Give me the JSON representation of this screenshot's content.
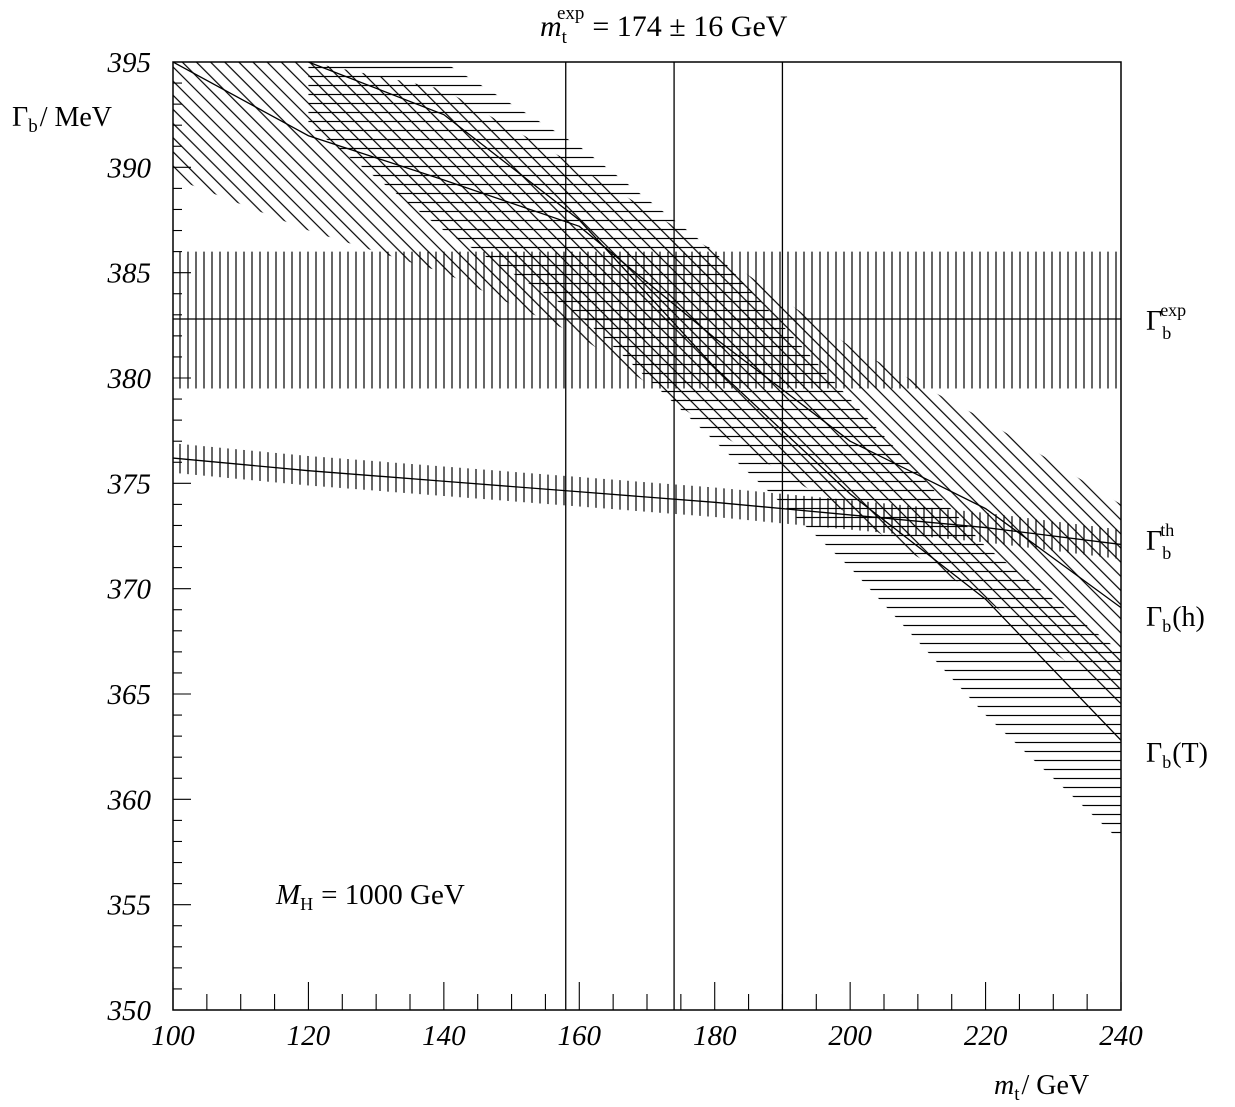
{
  "chart_data": {
    "type": "line",
    "title": {
      "symbol": "m",
      "sub": "t",
      "sup": "exp",
      "value": "= 174 ± 16 GeV"
    },
    "xlabel": {
      "symbol": "m",
      "sub": "t",
      "unit": "/ GeV"
    },
    "ylabel": {
      "symbol": "Γ",
      "sub": "b",
      "unit": "/ MeV"
    },
    "xlim": [
      100,
      240
    ],
    "ylim": [
      350,
      395
    ],
    "x_ticks": [
      "100",
      "120",
      "140",
      "160",
      "180",
      "200",
      "220",
      "240"
    ],
    "y_ticks": [
      "350",
      "355",
      "360",
      "365",
      "370",
      "375",
      "380",
      "385",
      "390",
      "395"
    ],
    "annotation": {
      "symbol": "M",
      "sub": "H",
      "value": "= 1000 GeV"
    },
    "mt_exp": {
      "central": 174,
      "low": 158,
      "high": 190
    },
    "series": [
      {
        "name": "Γ_b^exp",
        "label": {
          "base": "Γ",
          "sub": "b",
          "sup": "exp"
        },
        "x": [
          100,
          240
        ],
        "y": [
          382.8,
          382.8
        ],
        "band_lower": [
          379.5,
          379.5
        ],
        "band_upper": [
          386.0,
          386.0
        ],
        "band_hatch": "vertical"
      },
      {
        "name": "Γ_b^th",
        "label": {
          "base": "Γ",
          "sub": "b",
          "sup": "th"
        },
        "x": [
          100,
          120,
          140,
          160,
          180,
          200,
          220,
          240
        ],
        "y": [
          376.2,
          375.6,
          375.1,
          374.6,
          374.1,
          373.5,
          372.9,
          372.1
        ],
        "band_lower": [
          375.5,
          374.9,
          374.4,
          373.9,
          373.4,
          372.8,
          372.2,
          371.4
        ],
        "band_upper": [
          376.9,
          376.3,
          375.8,
          375.3,
          374.8,
          374.2,
          373.6,
          372.8
        ],
        "band_hatch": "vertical"
      },
      {
        "name": "Γ_b(h)",
        "label": {
          "base": "Γ",
          "sub": "b",
          "arg": "(h)"
        },
        "x": [
          100,
          120,
          140,
          160,
          180,
          200,
          220,
          240
        ],
        "y": [
          395,
          391.5,
          389.4,
          387.2,
          381.9,
          377.0,
          373.8,
          369.1
        ],
        "band_lower": [
          389.5,
          387.0,
          385.0,
          382.0,
          377.5,
          373.5,
          369.5,
          364.5
        ],
        "band_upper": [
          395,
          395,
          393.7,
          390.0,
          386.0,
          381.5,
          378.0,
          374.0
        ],
        "band_hatch": "diagonal"
      },
      {
        "name": "Γ_b(T)",
        "label": {
          "base": "Γ",
          "sub": "b",
          "arg": "(T)"
        },
        "x": [
          120,
          140,
          160,
          180,
          200,
          220,
          240
        ],
        "y": [
          395,
          392.5,
          387.5,
          380.5,
          374.5,
          369.5,
          362.8
        ],
        "band_lower": [
          392.0,
          387.0,
          383.0,
          377.0,
          371.0,
          364.0,
          358.0
        ],
        "band_upper": [
          395,
          395,
          391.0,
          386.0,
          379.0,
          372.0,
          367.0
        ],
        "band_hatch": "horizontal"
      }
    ],
    "grid": false,
    "legend": "right-edge-labels"
  }
}
